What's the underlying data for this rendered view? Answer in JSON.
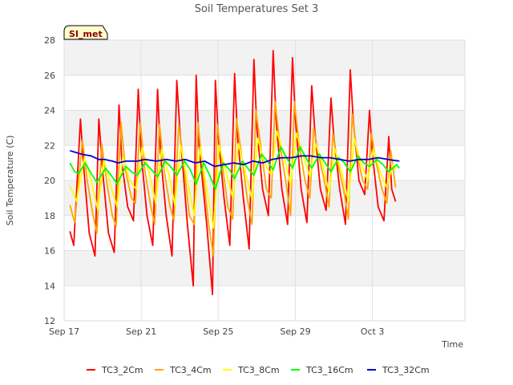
{
  "chart_data": {
    "type": "line",
    "title": "Soil Temperatures Set 3",
    "xlabel": "Time",
    "ylabel": "Soil Temperature (C)",
    "badge": "SI_met",
    "ylim": [
      12,
      28
    ],
    "yticks": [
      12,
      14,
      16,
      18,
      20,
      22,
      24,
      26,
      28
    ],
    "xlim": [
      0,
      20.8
    ],
    "xticks": [
      {
        "value": 0,
        "label": "Sep 17"
      },
      {
        "value": 4,
        "label": "Sep 21"
      },
      {
        "value": 8,
        "label": "Sep 25"
      },
      {
        "value": 12,
        "label": "Sep 29"
      },
      {
        "value": 16,
        "label": "Oct 3"
      }
    ],
    "x_unit": "days since Sep 17",
    "grid": true,
    "legend_position": "bottom",
    "series": [
      {
        "name": "TC3_2Cm",
        "color": "#ff0000",
        "points": [
          [
            0.3,
            17.1
          ],
          [
            0.5,
            16.3
          ],
          [
            0.85,
            23.5
          ],
          [
            1.0,
            21.0
          ],
          [
            1.3,
            17.0
          ],
          [
            1.6,
            15.7
          ],
          [
            1.8,
            23.5
          ],
          [
            2.0,
            20.5
          ],
          [
            2.3,
            17.0
          ],
          [
            2.6,
            15.9
          ],
          [
            2.85,
            24.3
          ],
          [
            3.0,
            21.0
          ],
          [
            3.3,
            18.5
          ],
          [
            3.6,
            17.7
          ],
          [
            3.85,
            25.2
          ],
          [
            4.0,
            21.5
          ],
          [
            4.3,
            18.0
          ],
          [
            4.6,
            16.3
          ],
          [
            4.85,
            25.2
          ],
          [
            5.0,
            21.5
          ],
          [
            5.3,
            18.0
          ],
          [
            5.6,
            15.7
          ],
          [
            5.85,
            25.7
          ],
          [
            6.0,
            23.0
          ],
          [
            6.4,
            17.5
          ],
          [
            6.7,
            14.0
          ],
          [
            6.85,
            26.0
          ],
          [
            7.0,
            22.0
          ],
          [
            7.4,
            17.5
          ],
          [
            7.7,
            13.5
          ],
          [
            7.85,
            25.7
          ],
          [
            8.0,
            22.5
          ],
          [
            8.3,
            19.0
          ],
          [
            8.6,
            16.3
          ],
          [
            8.85,
            26.1
          ],
          [
            9.0,
            22.5
          ],
          [
            9.3,
            19.0
          ],
          [
            9.6,
            16.1
          ],
          [
            9.85,
            26.9
          ],
          [
            10.0,
            23.0
          ],
          [
            10.3,
            19.5
          ],
          [
            10.6,
            18.0
          ],
          [
            10.85,
            27.4
          ],
          [
            11.0,
            23.5
          ],
          [
            11.3,
            19.5
          ],
          [
            11.6,
            17.5
          ],
          [
            11.85,
            27.0
          ],
          [
            12.0,
            23.5
          ],
          [
            12.3,
            19.5
          ],
          [
            12.6,
            17.6
          ],
          [
            12.85,
            25.4
          ],
          [
            13.0,
            23.0
          ],
          [
            13.3,
            19.5
          ],
          [
            13.6,
            18.3
          ],
          [
            13.85,
            24.7
          ],
          [
            14.0,
            22.5
          ],
          [
            14.3,
            19.5
          ],
          [
            14.6,
            17.5
          ],
          [
            14.85,
            26.3
          ],
          [
            15.0,
            23.5
          ],
          [
            15.3,
            20.0
          ],
          [
            15.6,
            19.2
          ],
          [
            15.85,
            24.0
          ],
          [
            16.0,
            21.5
          ],
          [
            16.3,
            18.5
          ],
          [
            16.6,
            17.7
          ],
          [
            16.85,
            22.5
          ],
          [
            17.0,
            19.5
          ],
          [
            17.2,
            18.8
          ]
        ]
      },
      {
        "name": "TC3_4Cm",
        "color": "#ffa500",
        "points": [
          [
            0.3,
            18.6
          ],
          [
            0.55,
            17.6
          ],
          [
            0.95,
            22.3
          ],
          [
            1.2,
            20.0
          ],
          [
            1.5,
            18.0
          ],
          [
            1.7,
            17.0
          ],
          [
            1.95,
            22.1
          ],
          [
            2.2,
            20.0
          ],
          [
            2.5,
            18.0
          ],
          [
            2.7,
            17.4
          ],
          [
            2.95,
            23.3
          ],
          [
            3.2,
            20.5
          ],
          [
            3.5,
            19.0
          ],
          [
            3.7,
            18.7
          ],
          [
            3.95,
            23.3
          ],
          [
            4.2,
            20.5
          ],
          [
            4.5,
            18.5
          ],
          [
            4.7,
            17.5
          ],
          [
            4.95,
            23.2
          ],
          [
            5.2,
            20.5
          ],
          [
            5.5,
            18.5
          ],
          [
            5.7,
            17.7
          ],
          [
            5.95,
            23.2
          ],
          [
            6.2,
            21.0
          ],
          [
            6.5,
            18.0
          ],
          [
            6.75,
            17.5
          ],
          [
            6.95,
            23.3
          ],
          [
            7.2,
            20.5
          ],
          [
            7.5,
            17.5
          ],
          [
            7.75,
            15.7
          ],
          [
            7.95,
            23.2
          ],
          [
            8.2,
            21.0
          ],
          [
            8.5,
            18.5
          ],
          [
            8.75,
            17.8
          ],
          [
            8.95,
            23.5
          ],
          [
            9.2,
            21.5
          ],
          [
            9.5,
            19.0
          ],
          [
            9.75,
            17.5
          ],
          [
            9.95,
            24.0
          ],
          [
            10.2,
            22.0
          ],
          [
            10.5,
            19.5
          ],
          [
            10.75,
            19.0
          ],
          [
            10.95,
            24.5
          ],
          [
            11.2,
            22.0
          ],
          [
            11.5,
            20.0
          ],
          [
            11.75,
            18.0
          ],
          [
            11.95,
            24.5
          ],
          [
            12.2,
            22.0
          ],
          [
            12.5,
            20.0
          ],
          [
            12.75,
            19.0
          ],
          [
            12.95,
            23.0
          ],
          [
            13.2,
            21.5
          ],
          [
            13.5,
            20.0
          ],
          [
            13.75,
            18.5
          ],
          [
            13.95,
            22.7
          ],
          [
            14.2,
            21.0
          ],
          [
            14.5,
            19.5
          ],
          [
            14.75,
            17.8
          ],
          [
            14.95,
            23.8
          ],
          [
            15.2,
            21.5
          ],
          [
            15.5,
            20.0
          ],
          [
            15.75,
            19.5
          ],
          [
            15.95,
            22.7
          ],
          [
            16.2,
            21.0
          ],
          [
            16.5,
            19.5
          ],
          [
            16.75,
            18.7
          ],
          [
            16.95,
            21.7
          ],
          [
            17.2,
            19.6
          ]
        ]
      },
      {
        "name": "TC3_8Cm",
        "color": "#ffff00",
        "points": [
          [
            0.3,
            19.7
          ],
          [
            0.65,
            18.8
          ],
          [
            1.05,
            21.3
          ],
          [
            1.4,
            20.0
          ],
          [
            1.75,
            18.3
          ],
          [
            2.05,
            21.2
          ],
          [
            2.4,
            19.8
          ],
          [
            2.75,
            18.5
          ],
          [
            3.05,
            21.4
          ],
          [
            3.4,
            20.0
          ],
          [
            3.75,
            19.5
          ],
          [
            4.05,
            21.9
          ],
          [
            4.4,
            20.5
          ],
          [
            4.75,
            18.7
          ],
          [
            5.05,
            21.8
          ],
          [
            5.4,
            20.5
          ],
          [
            5.75,
            18.6
          ],
          [
            6.05,
            22.0
          ],
          [
            6.4,
            20.0
          ],
          [
            6.75,
            18.0
          ],
          [
            7.05,
            21.9
          ],
          [
            7.4,
            19.5
          ],
          [
            7.75,
            17.3
          ],
          [
            8.05,
            22.0
          ],
          [
            8.4,
            20.5
          ],
          [
            8.75,
            19.0
          ],
          [
            9.05,
            22.1
          ],
          [
            9.4,
            20.5
          ],
          [
            9.75,
            18.9
          ],
          [
            10.05,
            22.4
          ],
          [
            10.4,
            21.0
          ],
          [
            10.75,
            20.3
          ],
          [
            11.05,
            22.8
          ],
          [
            11.4,
            21.5
          ],
          [
            11.75,
            19.7
          ],
          [
            12.05,
            22.7
          ],
          [
            12.4,
            21.5
          ],
          [
            12.75,
            20.2
          ],
          [
            13.05,
            22.1
          ],
          [
            13.4,
            21.0
          ],
          [
            13.75,
            19.3
          ],
          [
            14.05,
            21.8
          ],
          [
            14.4,
            20.5
          ],
          [
            14.75,
            18.8
          ],
          [
            15.05,
            22.4
          ],
          [
            15.4,
            21.0
          ],
          [
            15.75,
            20.0
          ],
          [
            16.05,
            21.8
          ],
          [
            16.4,
            20.5
          ],
          [
            16.75,
            19.6
          ],
          [
            17.05,
            20.9
          ],
          [
            17.2,
            20.6
          ]
        ]
      },
      {
        "name": "TC3_16Cm",
        "color": "#00ff00",
        "points": [
          [
            0.3,
            21.0
          ],
          [
            0.55,
            20.5
          ],
          [
            0.75,
            20.4
          ],
          [
            1.1,
            21.0
          ],
          [
            1.4,
            20.4
          ],
          [
            1.7,
            19.9
          ],
          [
            2.15,
            20.7
          ],
          [
            2.5,
            20.2
          ],
          [
            2.75,
            19.8
          ],
          [
            3.2,
            20.8
          ],
          [
            3.5,
            20.5
          ],
          [
            3.8,
            20.3
          ],
          [
            4.2,
            21.0
          ],
          [
            4.55,
            20.6
          ],
          [
            4.85,
            20.2
          ],
          [
            5.25,
            21.1
          ],
          [
            5.6,
            20.7
          ],
          [
            5.85,
            20.3
          ],
          [
            6.25,
            21.1
          ],
          [
            6.55,
            20.6
          ],
          [
            6.85,
            19.8
          ],
          [
            7.25,
            21.0
          ],
          [
            7.55,
            20.3
          ],
          [
            7.85,
            19.5
          ],
          [
            8.25,
            21.0
          ],
          [
            8.6,
            20.6
          ],
          [
            8.85,
            20.1
          ],
          [
            9.25,
            21.1
          ],
          [
            9.6,
            20.6
          ],
          [
            9.85,
            20.3
          ],
          [
            10.25,
            21.5
          ],
          [
            10.55,
            21.1
          ],
          [
            10.85,
            20.6
          ],
          [
            11.25,
            21.9
          ],
          [
            11.55,
            21.3
          ],
          [
            11.85,
            20.7
          ],
          [
            12.25,
            21.9
          ],
          [
            12.55,
            21.3
          ],
          [
            12.85,
            20.7
          ],
          [
            13.25,
            21.5
          ],
          [
            13.55,
            21.0
          ],
          [
            13.85,
            20.5
          ],
          [
            14.25,
            21.3
          ],
          [
            14.55,
            21.0
          ],
          [
            14.85,
            20.5
          ],
          [
            15.25,
            21.4
          ],
          [
            15.55,
            21.0
          ],
          [
            15.85,
            20.8
          ],
          [
            16.25,
            21.2
          ],
          [
            16.55,
            20.9
          ],
          [
            16.85,
            20.5
          ],
          [
            17.25,
            20.9
          ],
          [
            17.4,
            20.7
          ]
        ]
      },
      {
        "name": "TC3_32Cm",
        "color": "#0000cd",
        "points": [
          [
            0.3,
            21.7
          ],
          [
            0.6,
            21.6
          ],
          [
            0.9,
            21.5
          ],
          [
            1.4,
            21.4
          ],
          [
            1.8,
            21.2
          ],
          [
            2.1,
            21.2
          ],
          [
            2.5,
            21.1
          ],
          [
            2.8,
            21.0
          ],
          [
            3.2,
            21.1
          ],
          [
            3.8,
            21.1
          ],
          [
            4.2,
            21.2
          ],
          [
            4.8,
            21.1
          ],
          [
            5.3,
            21.2
          ],
          [
            5.8,
            21.1
          ],
          [
            6.3,
            21.2
          ],
          [
            6.8,
            21.0
          ],
          [
            7.3,
            21.1
          ],
          [
            7.8,
            20.8
          ],
          [
            8.3,
            20.9
          ],
          [
            8.8,
            21.0
          ],
          [
            9.3,
            20.9
          ],
          [
            9.8,
            21.1
          ],
          [
            10.3,
            21.0
          ],
          [
            10.8,
            21.2
          ],
          [
            11.3,
            21.3
          ],
          [
            11.8,
            21.3
          ],
          [
            12.3,
            21.4
          ],
          [
            12.8,
            21.4
          ],
          [
            13.3,
            21.3
          ],
          [
            13.8,
            21.3
          ],
          [
            14.3,
            21.2
          ],
          [
            14.8,
            21.1
          ],
          [
            15.3,
            21.2
          ],
          [
            15.8,
            21.2
          ],
          [
            16.3,
            21.3
          ],
          [
            16.8,
            21.2
          ],
          [
            17.4,
            21.1
          ]
        ]
      }
    ]
  }
}
